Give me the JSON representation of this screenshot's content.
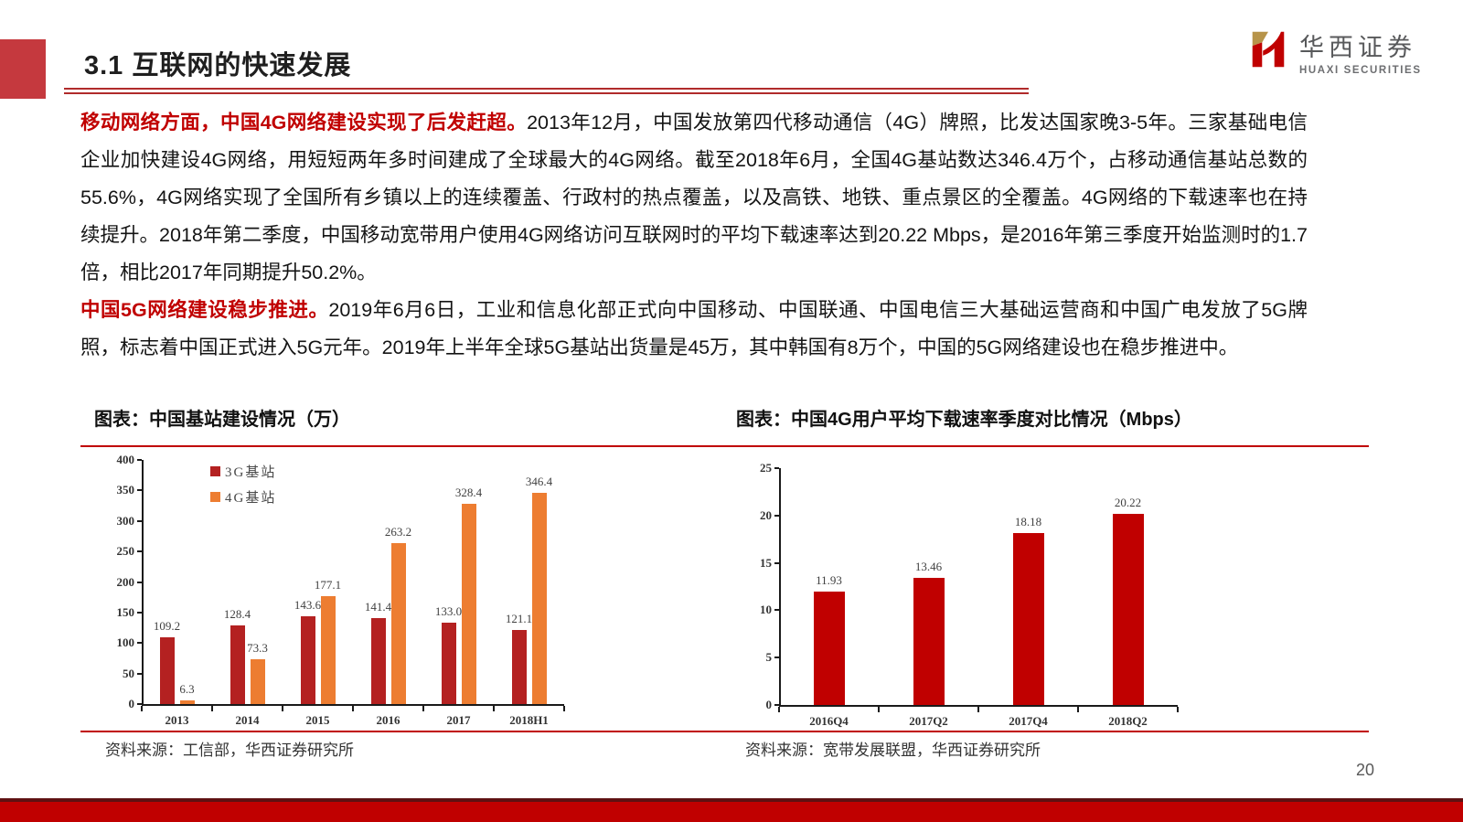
{
  "header": {
    "title": "3.1 互联网的快速发展",
    "logo_cn": "华西证券",
    "logo_en": "HUAXI SECURITIES"
  },
  "paragraphs": [
    {
      "lead": "移动网络方面，中国4G网络建设实现了后发赶超。",
      "body": "2013年12月，中国发放第四代移动通信（4G）牌照，比发达国家晚3-5年。三家基础电信企业加快建设4G网络，用短短两年多时间建成了全球最大的4G网络。截至2018年6月，全国4G基站数达346.4万个，占移动通信基站总数的55.6%，4G网络实现了全国所有乡镇以上的连续覆盖、行政村的热点覆盖，以及高铁、地铁、重点景区的全覆盖。4G网络的下载速率也在持续提升。2018年第二季度，中国移动宽带用户使用4G网络访问互联网时的平均下载速率达到20.22 Mbps，是2016年第三季度开始监测时的1.7倍，相比2017年同期提升50.2%。"
    },
    {
      "lead": "中国5G网络建设稳步推进。",
      "body": "2019年6月6日，工业和信息化部正式向中国移动、中国联通、中国电信三大基础运营商和中国广电发放了5G牌照，标志着中国正式进入5G元年。2019年上半年全球5G基站出货量是45万，其中韩国有8万个，中国的5G网络建设也在稳步推进中。"
    }
  ],
  "chart_data": [
    {
      "type": "bar",
      "title": "图表：中国基站建设情况（万）",
      "source": "资料来源：工信部，华西证券研究所",
      "categories": [
        "2013",
        "2014",
        "2015",
        "2016",
        "2017",
        "2018H1"
      ],
      "series": [
        {
          "name": "3G基站",
          "color": "#b42121",
          "values": [
            109.2,
            128.4,
            143.6,
            141.4,
            133.0,
            121.1
          ],
          "labels": [
            "109.2",
            "128.4",
            "143.6",
            "141.4",
            "133.0",
            "121.1"
          ]
        },
        {
          "name": "4G基站",
          "color": "#ed7d31",
          "values": [
            6.3,
            73.3,
            177.1,
            263.2,
            328.4,
            346.4
          ],
          "labels": [
            "6.3",
            "73.3",
            "177.1",
            "263.2",
            "328.4",
            "346.4"
          ]
        }
      ],
      "xlabel": "",
      "ylabel": "",
      "ylim": [
        0,
        400
      ],
      "ytick_step": 50,
      "grid": false,
      "legend_position": "upper-left"
    },
    {
      "type": "bar",
      "title": "图表：中国4G用户平均下载速率季度对比情况（Mbps）",
      "source": "资料来源：宽带发展联盟，华西证券研究所",
      "categories": [
        "2016Q4",
        "2017Q2",
        "2017Q4",
        "2018Q2"
      ],
      "series": [
        {
          "name": "4G用户平均下载速率",
          "color": "#c00000",
          "values": [
            11.93,
            13.46,
            18.18,
            20.22
          ],
          "labels": [
            "11.93",
            "13.46",
            "18.18",
            "20.22"
          ]
        }
      ],
      "xlabel": "",
      "ylabel": "",
      "ylim": [
        0,
        25
      ],
      "ytick_step": 5,
      "grid": false,
      "legend_position": "none"
    }
  ],
  "footer": {
    "page_number": "20"
  },
  "colors": {
    "accent_red": "#c00000",
    "title_square": "#c5393e",
    "footer_bar": "#c00000",
    "footer_bar_edge": "#5f1112"
  }
}
